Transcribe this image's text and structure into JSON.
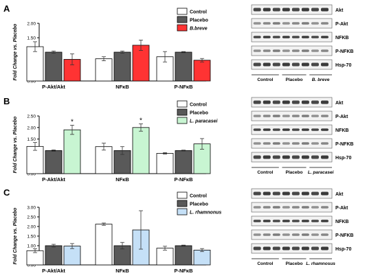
{
  "chart_data": [
    {
      "panel": "A",
      "type": "bar",
      "categories": [
        "P-Akt/Akt",
        "NFκB",
        "P-NFκB"
      ],
      "ylabel": "Fold Change vs. Placebo",
      "ylim": [
        0,
        2
      ],
      "yticks": [
        "0.00",
        "0.50",
        "1.00",
        "1.50",
        "2.00"
      ],
      "legend_position": "top-center",
      "series": [
        {
          "name": "Control",
          "color": "#ffffff",
          "values": [
            1.19,
            0.77,
            0.84
          ],
          "errors": [
            0.17,
            0.07,
            0.18
          ]
        },
        {
          "name": "Placebo",
          "color": "#595959",
          "values": [
            1.0,
            1.0,
            1.0
          ],
          "errors": [
            0.04,
            0.04,
            0.02
          ]
        },
        {
          "name": "B.breve",
          "color": "#ff3333",
          "values": [
            0.75,
            1.24,
            0.72
          ],
          "errors": [
            0.19,
            0.18,
            0.06
          ]
        }
      ],
      "annotations": []
    },
    {
      "panel": "B",
      "type": "bar",
      "categories": [
        "P-Akt/Akt",
        "NFκB",
        "P-NFκB"
      ],
      "ylabel": "Fold Change vs. Placebo",
      "ylim": [
        0,
        2.5
      ],
      "yticks": [
        "0.00",
        "0.50",
        "1.00",
        "1.50",
        "2.00",
        "2.50"
      ],
      "legend_position": "top-center",
      "series": [
        {
          "name": "Control",
          "color": "#ffffff",
          "values": [
            1.18,
            1.17,
            0.88
          ],
          "errors": [
            0.17,
            0.15,
            0.03
          ]
        },
        {
          "name": "Placebo",
          "color": "#595959",
          "values": [
            1.0,
            1.0,
            1.0
          ],
          "errors": [
            0.03,
            0.17,
            0.02
          ]
        },
        {
          "name": "L. paracasei",
          "color": "#c8f5d2",
          "values": [
            1.9,
            2.0,
            1.29
          ],
          "errors": [
            0.2,
            0.16,
            0.23
          ]
        }
      ],
      "annotations": [
        {
          "text": "*",
          "category": "P-Akt/Akt",
          "series": "L. paracasei"
        },
        {
          "text": "*",
          "category": "NFκB",
          "series": "L. paracasei"
        }
      ]
    },
    {
      "panel": "C",
      "type": "bar",
      "categories": [
        "P-Akt/Akt",
        "NFκB",
        "P-NFκB"
      ],
      "ylabel": "Fold Change vs. Placebo",
      "ylim": [
        0,
        3
      ],
      "yticks": [
        "0.00",
        "0.50",
        "1.00",
        "1.50",
        "2.00",
        "2.50",
        "3.00"
      ],
      "legend_position": "top-center",
      "series": [
        {
          "name": "Control",
          "color": "#ffffff",
          "values": [
            0.74,
            2.12,
            0.87
          ],
          "errors": [
            0.1,
            0.06,
            0.1
          ]
        },
        {
          "name": "Placebo",
          "color": "#595959",
          "values": [
            1.0,
            1.0,
            1.0
          ],
          "errors": [
            0.07,
            0.17,
            0.03
          ]
        },
        {
          "name": "L. rhamnonus",
          "color": "#c5e0f7",
          "values": [
            0.98,
            1.82,
            0.77
          ],
          "errors": [
            0.13,
            1.0,
            0.08
          ]
        }
      ],
      "annotations": []
    }
  ],
  "blots": [
    {
      "panel": "A",
      "proteins": [
        "Akt",
        "P-Akt",
        "NFKB",
        "P-NFKB",
        "Hsp-70"
      ],
      "groups": [
        "Control",
        "Placebo",
        "B. breve"
      ]
    },
    {
      "panel": "B",
      "proteins": [
        "Akt",
        "P-Akt",
        "NFKB",
        "P-NFKB",
        "Hsp-70"
      ],
      "groups": [
        "Control",
        "Placebo",
        "L. paracasei"
      ]
    },
    {
      "panel": "C",
      "proteins": [
        "Akt",
        "P-Akt",
        "NFKB",
        "P-NFKB",
        "Hsp-70"
      ],
      "groups": [
        "Control",
        "Placebo",
        "L. rhamnosus"
      ]
    }
  ]
}
